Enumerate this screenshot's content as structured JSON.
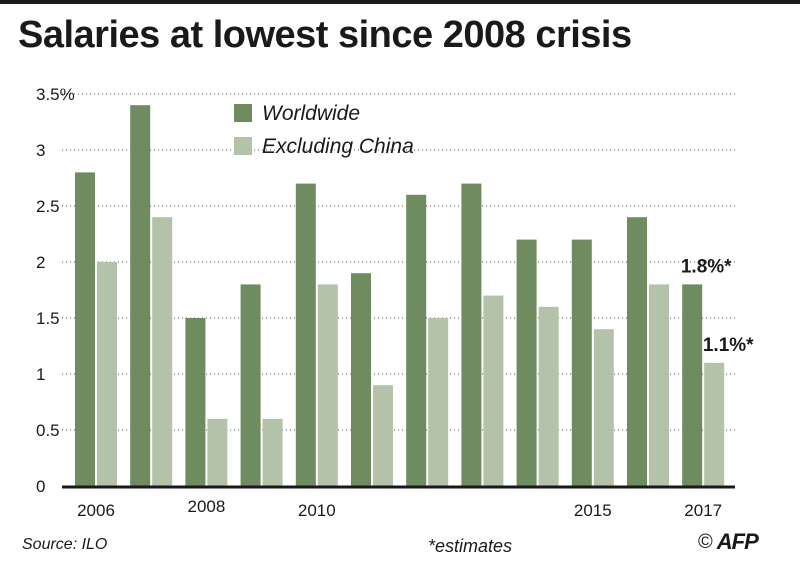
{
  "title": "Salaries at lowest since 2008 crisis",
  "footer": {
    "source": "Source: ILO",
    "note": "*estimates",
    "credit_symbol": "©",
    "logo_text": "AFP"
  },
  "colors": {
    "worldwide": "#6e8c5f",
    "excluding_china": "#b3c2a9",
    "axis": "#1a1a1a",
    "grid": "#555555",
    "text": "#1a1a1a"
  },
  "chart_data": {
    "type": "bar",
    "title": "Salaries at lowest since 2008 crisis",
    "xlabel": "",
    "ylabel": "",
    "ylim": [
      0,
      3.5
    ],
    "yticks": [
      {
        "value": 0,
        "label": "0"
      },
      {
        "value": 0.5,
        "label": "0.5"
      },
      {
        "value": 1,
        "label": "1"
      },
      {
        "value": 1.5,
        "label": "1.5"
      },
      {
        "value": 2,
        "label": "2"
      },
      {
        "value": 2.5,
        "label": "2.5"
      },
      {
        "value": 3,
        "label": "3"
      },
      {
        "value": 3.5,
        "label": "3.5%"
      }
    ],
    "grid": true,
    "legend_position": "top-left",
    "categories": [
      "2006",
      "2007",
      "2008",
      "2009",
      "2010",
      "2011",
      "2012",
      "2013",
      "2014",
      "2015",
      "2016",
      "2017"
    ],
    "xtick_labels": [
      "2006",
      "",
      "2008",
      "",
      "2010",
      "",
      "",
      "",
      "",
      "2015",
      "",
      "2017"
    ],
    "series": [
      {
        "name": "Worldwide",
        "values": [
          2.8,
          3.4,
          1.5,
          1.8,
          2.7,
          1.9,
          2.6,
          2.7,
          2.2,
          2.2,
          2.4,
          1.8
        ]
      },
      {
        "name": "Excluding China",
        "values": [
          2.0,
          2.4,
          0.6,
          0.6,
          1.8,
          0.9,
          1.5,
          1.7,
          1.6,
          1.4,
          1.8,
          1.1
        ]
      }
    ],
    "annotations": [
      {
        "text": "1.8%*",
        "series": 0,
        "category": "2017"
      },
      {
        "text": "1.1%*",
        "series": 1,
        "category": "2017"
      }
    ]
  }
}
